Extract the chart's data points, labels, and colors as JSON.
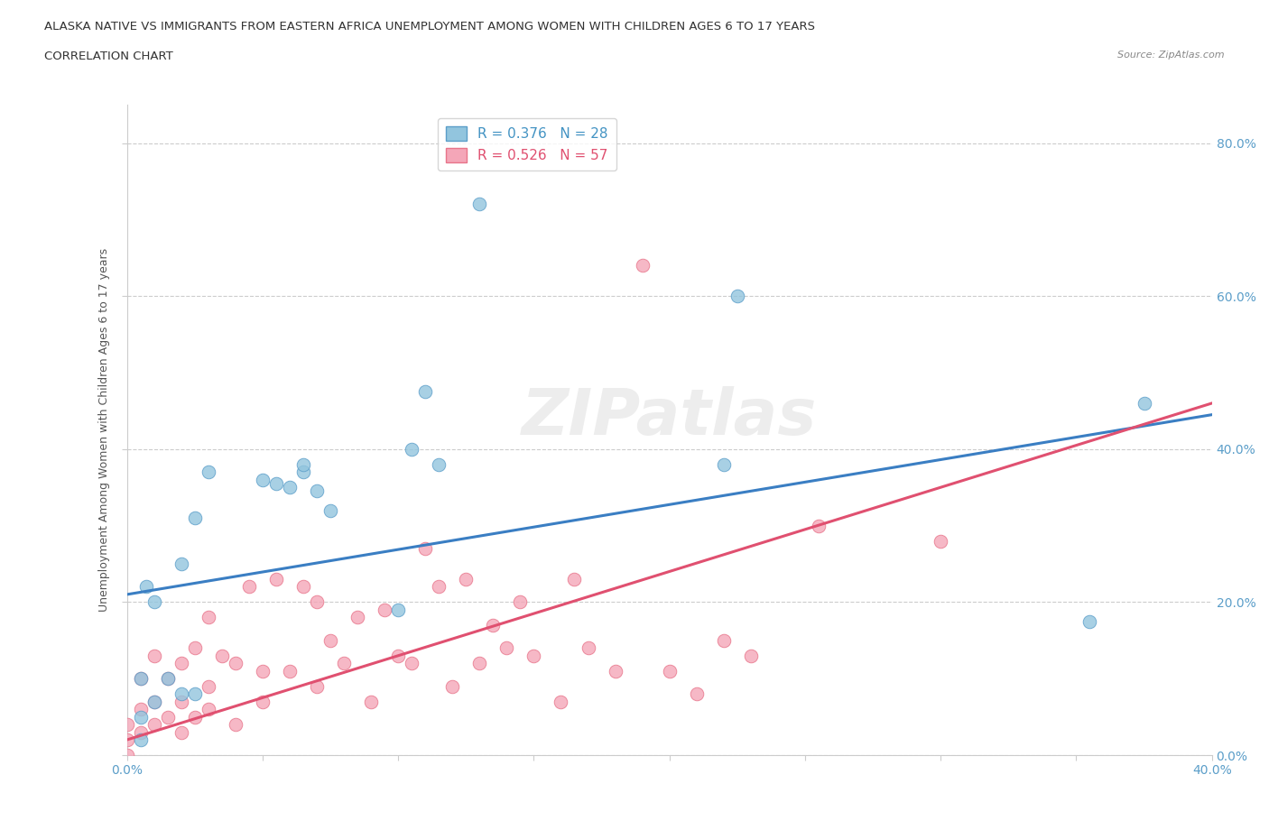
{
  "title_line1": "ALASKA NATIVE VS IMMIGRANTS FROM EASTERN AFRICA UNEMPLOYMENT AMONG WOMEN WITH CHILDREN AGES 6 TO 17 YEARS",
  "title_line2": "CORRELATION CHART",
  "source": "Source: ZipAtlas.com",
  "ylabel": "Unemployment Among Women with Children Ages 6 to 17 years",
  "xlim": [
    0.0,
    0.4
  ],
  "ylim": [
    0.0,
    0.85
  ],
  "ytick_positions": [
    0.0,
    0.2,
    0.4,
    0.6,
    0.8
  ],
  "ytick_labels": [
    "0.0%",
    "20.0%",
    "40.0%",
    "60.0%",
    "80.0%"
  ],
  "xtick_positions": [
    0.0,
    0.05,
    0.1,
    0.15,
    0.2,
    0.25,
    0.3,
    0.35,
    0.4
  ],
  "xtick_labels": [
    "0.0%",
    "",
    "",
    "",
    "",
    "",
    "",
    "",
    "40.0%"
  ],
  "alaska_color": "#92C5DE",
  "eastern_color": "#F4A6B8",
  "alaska_edge_color": "#5B9EC9",
  "eastern_edge_color": "#E8748A",
  "alaska_line_color": "#3A7EC3",
  "eastern_line_color": "#E05070",
  "r_alaska": 0.376,
  "n_alaska": 28,
  "r_eastern": 0.526,
  "n_eastern": 57,
  "watermark": "ZIPatlas",
  "alaska_x": [
    0.005,
    0.005,
    0.005,
    0.007,
    0.01,
    0.01,
    0.015,
    0.02,
    0.02,
    0.025,
    0.025,
    0.03,
    0.05,
    0.055,
    0.06,
    0.065,
    0.065,
    0.07,
    0.075,
    0.1,
    0.105,
    0.11,
    0.115,
    0.13,
    0.22,
    0.225,
    0.355,
    0.375
  ],
  "alaska_y": [
    0.02,
    0.05,
    0.1,
    0.22,
    0.07,
    0.2,
    0.1,
    0.08,
    0.25,
    0.08,
    0.31,
    0.37,
    0.36,
    0.355,
    0.35,
    0.37,
    0.38,
    0.345,
    0.32,
    0.19,
    0.4,
    0.475,
    0.38,
    0.72,
    0.38,
    0.6,
    0.175,
    0.46
  ],
  "eastern_x": [
    0.0,
    0.0,
    0.0,
    0.005,
    0.005,
    0.005,
    0.01,
    0.01,
    0.01,
    0.015,
    0.015,
    0.02,
    0.02,
    0.02,
    0.025,
    0.025,
    0.03,
    0.03,
    0.03,
    0.035,
    0.04,
    0.04,
    0.045,
    0.05,
    0.05,
    0.055,
    0.06,
    0.065,
    0.07,
    0.07,
    0.075,
    0.08,
    0.085,
    0.09,
    0.095,
    0.1,
    0.105,
    0.11,
    0.115,
    0.12,
    0.125,
    0.13,
    0.135,
    0.14,
    0.145,
    0.15,
    0.16,
    0.165,
    0.17,
    0.18,
    0.19,
    0.2,
    0.21,
    0.22,
    0.23,
    0.255,
    0.3
  ],
  "eastern_y": [
    0.0,
    0.02,
    0.04,
    0.03,
    0.06,
    0.1,
    0.04,
    0.07,
    0.13,
    0.05,
    0.1,
    0.03,
    0.07,
    0.12,
    0.05,
    0.14,
    0.06,
    0.09,
    0.18,
    0.13,
    0.04,
    0.12,
    0.22,
    0.07,
    0.11,
    0.23,
    0.11,
    0.22,
    0.09,
    0.2,
    0.15,
    0.12,
    0.18,
    0.07,
    0.19,
    0.13,
    0.12,
    0.27,
    0.22,
    0.09,
    0.23,
    0.12,
    0.17,
    0.14,
    0.2,
    0.13,
    0.07,
    0.23,
    0.14,
    0.11,
    0.64,
    0.11,
    0.08,
    0.15,
    0.13,
    0.3,
    0.28
  ],
  "alaska_line_x0": 0.0,
  "alaska_line_y0": 0.21,
  "alaska_line_x1": 0.4,
  "alaska_line_y1": 0.445,
  "eastern_line_x0": 0.0,
  "eastern_line_y0": 0.02,
  "eastern_line_x1": 0.4,
  "eastern_line_y1": 0.46,
  "legend_alaska_label": "R = 0.376   N = 28",
  "legend_eastern_label": "R = 0.526   N = 57",
  "legend_alaska_color_text": "#4393C3",
  "legend_eastern_color_text": "#E05070",
  "background_color": "#FFFFFF",
  "grid_color": "#CCCCCC",
  "tick_color": "#5B9EC9",
  "axis_label_color": "#555555",
  "title_color": "#333333"
}
